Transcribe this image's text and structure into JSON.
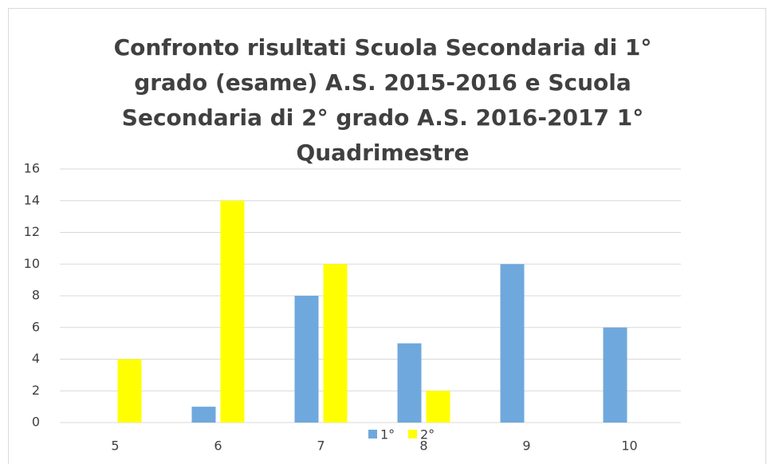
{
  "chart_data": {
    "type": "bar",
    "title": "Confronto risultati Scuola Secondaria di 1° grado (esame) A.S. 2015-2016 e Scuola Secondaria di 2° grado A.S. 2016-2017 1° Quadrimestre",
    "categories": [
      "5",
      "6",
      "7",
      "8",
      "9",
      "10"
    ],
    "series": [
      {
        "name": "1°",
        "color": "#6fa8dc",
        "values": [
          0,
          1,
          8,
          5,
          10,
          6
        ]
      },
      {
        "name": "2°",
        "color": "#ffff00",
        "values": [
          4,
          14,
          10,
          2,
          0,
          0
        ]
      }
    ],
    "ylim": [
      0,
      16
    ],
    "yticks": [
      0,
      2,
      4,
      6,
      8,
      10,
      12,
      14,
      16
    ],
    "grid": true,
    "legend": "bottom"
  }
}
